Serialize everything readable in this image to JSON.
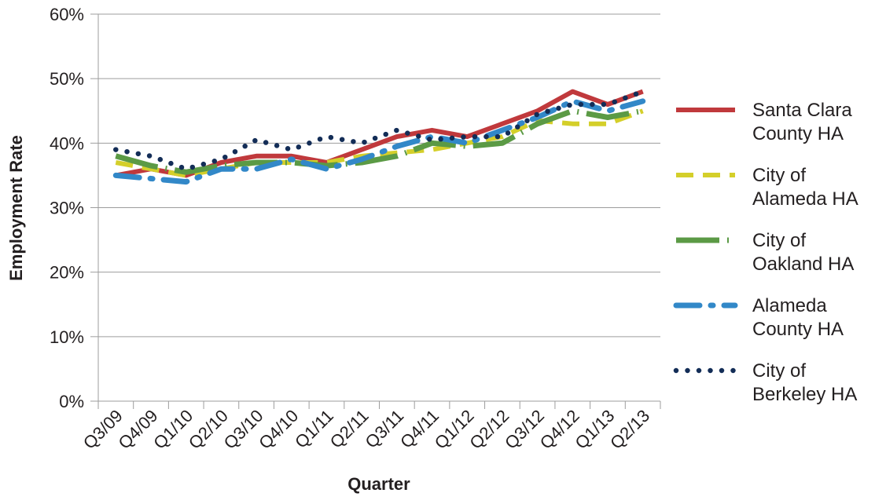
{
  "chart_data": {
    "type": "line",
    "title": "",
    "xlabel": "Quarter",
    "ylabel": "Employment Rate",
    "ylim": [
      0,
      60
    ],
    "y_ticks": [
      "0%",
      "10%",
      "20%",
      "30%",
      "40%",
      "50%",
      "60%"
    ],
    "grid": "horizontal",
    "legend_position": "right",
    "categories": [
      "Q3/09",
      "Q4/09",
      "Q1/10",
      "Q2/10",
      "Q3/10",
      "Q4/10",
      "Q1/11",
      "Q2/11",
      "Q3/11",
      "Q4/11",
      "Q1/12",
      "Q2/12",
      "Q3/12",
      "Q4/12",
      "Q1/13",
      "Q2/13"
    ],
    "x_ticks": [
      "Q3/09",
      "Q4/09",
      "Q1/10",
      "Q2/10",
      "Q3/10",
      "Q4/10",
      "Q1/11",
      "Q2/11",
      "Q3/11",
      "Q4/11",
      "Q1/12",
      "Q2/12",
      "Q3/12",
      "Q4/12",
      "Q1/13",
      "Q2/13"
    ],
    "series": [
      {
        "name": "Santa Clara County HA",
        "legend_lines": [
          "Santa Clara",
          "County HA"
        ],
        "color": "#c0393c",
        "style": "solid",
        "values": [
          35,
          36,
          35,
          37,
          38,
          38,
          37,
          39,
          41,
          42,
          41,
          43,
          45,
          48,
          46,
          48
        ]
      },
      {
        "name": "City of Alameda HA",
        "legend_lines": [
          "City of",
          "Alameda HA"
        ],
        "color": "#d4cf2a",
        "style": "dashed",
        "values": [
          37,
          36,
          35,
          36,
          37,
          37,
          37,
          38,
          38.5,
          39,
          40,
          41,
          43.5,
          43,
          43,
          45
        ]
      },
      {
        "name": "City of Oakland HA",
        "legend_lines": [
          "City of",
          "Oakland HA"
        ],
        "color": "#5b9a45",
        "style": "dashdot",
        "values": [
          38,
          36.5,
          35.5,
          36.5,
          37,
          37,
          36.5,
          37,
          38,
          40,
          39.5,
          40,
          43,
          45,
          44,
          45
        ]
      },
      {
        "name": "Alameda County HA",
        "legend_lines": [
          "Alameda",
          "County HA"
        ],
        "color": "#3288c8",
        "style": "longdashdot",
        "values": [
          35,
          34.5,
          34,
          36,
          36,
          37.5,
          36,
          37.5,
          39.5,
          41,
          40,
          42,
          44,
          46.5,
          45,
          46.5
        ]
      },
      {
        "name": "City of Berkeley HA",
        "legend_lines": [
          "City of",
          "Berkeley HA"
        ],
        "color": "#132d57",
        "style": "dotted",
        "values": [
          39,
          38,
          36,
          37.5,
          40.5,
          39,
          41,
          40,
          42,
          40.5,
          41,
          41,
          44.5,
          46,
          46,
          48
        ]
      }
    ]
  }
}
